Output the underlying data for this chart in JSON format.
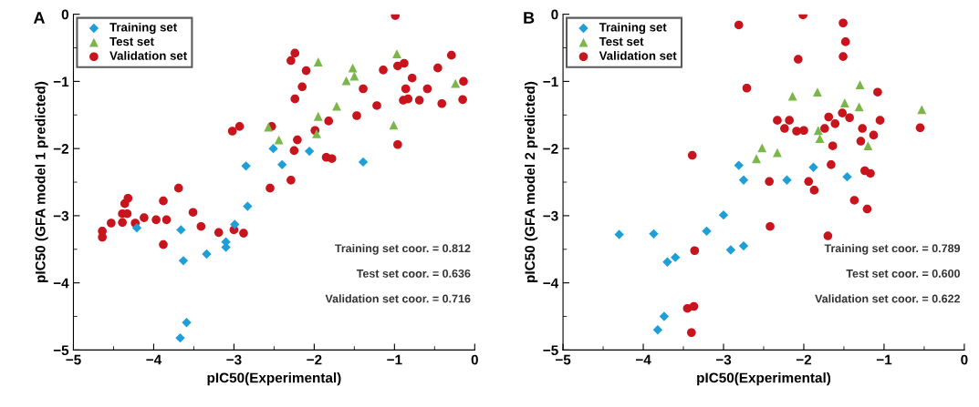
{
  "chart_data": [
    {
      "type": "scatter",
      "title": "A",
      "xlabel": "pIC50(Experimental)",
      "ylabel": "pIC50 (GFA model 1 predicted)",
      "xlim": [
        -5,
        0
      ],
      "ylim": [
        -5,
        0
      ],
      "xticks": [
        -5,
        -4,
        -3,
        -2,
        -1,
        0
      ],
      "yticks": [
        -5,
        -4,
        -3,
        -2,
        -1,
        0
      ],
      "grid": false,
      "legend": "top left",
      "annotations": [
        "Training set coor. = 0.812",
        "Test set coor. = 0.636",
        "Validation set coor. = 0.716"
      ],
      "series": [
        {
          "name": "Training set",
          "color": "#1e9fd8",
          "marker": "diamond",
          "x": [
            -4.21,
            -3.66,
            -3.63,
            -3.34,
            -3.1,
            -3.1,
            -2.99,
            -2.85,
            -2.83,
            -3.59,
            -3.67,
            -2.51,
            -2.06,
            -2.4,
            -1.39
          ],
          "values": [
            -3.18,
            -3.21,
            -3.67,
            -3.57,
            -3.39,
            -3.47,
            -3.13,
            -2.26,
            -2.86,
            -4.59,
            -4.82,
            -2.0,
            -2.04,
            -2.24,
            -2.2
          ]
        },
        {
          "name": "Test set",
          "color": "#7ab648",
          "marker": "triangle",
          "x": [
            -1.95,
            -1.52,
            -1.5,
            -1.6,
            -0.97,
            -0.24,
            -1.72,
            -1.95,
            -1.97,
            -2.57,
            -2.44,
            -1.01
          ],
          "values": [
            -0.71,
            -0.8,
            -0.92,
            -0.99,
            -0.59,
            -1.03,
            -1.37,
            -1.52,
            -1.78,
            -1.68,
            -1.87,
            -1.65
          ]
        },
        {
          "name": "Validation set",
          "color": "#c8141c",
          "marker": "circle",
          "x": [
            -4.64,
            -4.64,
            -4.53,
            -4.39,
            -4.39,
            -4.33,
            -4.36,
            -4.32,
            -4.23,
            -4.12,
            -3.97,
            -3.88,
            -3.84,
            -3.88,
            -3.69,
            -3.51,
            -3.41,
            -3.19,
            -3.0,
            -2.88,
            -3.02,
            -2.93,
            -0.99,
            -2.24,
            -2.29,
            -2.1,
            -2.15,
            -2.24,
            -1.14,
            -0.96,
            -0.88,
            -0.29,
            -0.46,
            -0.78,
            -0.14,
            -1.39,
            -0.86,
            -0.59,
            -0.89,
            -0.83,
            -0.69,
            -0.41,
            -0.15,
            -1.22,
            -1.47,
            -1.82,
            -2.53,
            -1.99,
            -2.21,
            -2.25,
            -1.85,
            -1.78,
            -0.96,
            -2.29,
            -2.55
          ],
          "values": [
            -3.23,
            -3.32,
            -3.11,
            -3.1,
            -2.97,
            -2.97,
            -2.82,
            -2.74,
            -3.11,
            -3.03,
            -3.06,
            -2.78,
            -3.06,
            -3.43,
            -2.59,
            -2.95,
            -3.16,
            -3.25,
            -3.21,
            -3.26,
            -1.74,
            -1.67,
            -0.02,
            -0.58,
            -0.69,
            -0.84,
            -1.08,
            -1.26,
            -0.83,
            -0.77,
            -0.73,
            -0.61,
            -0.8,
            -0.95,
            -1.0,
            -1.11,
            -1.11,
            -1.11,
            -1.28,
            -1.26,
            -1.28,
            -1.33,
            -1.27,
            -1.36,
            -1.51,
            -1.59,
            -1.67,
            -1.73,
            -1.87,
            -2.03,
            -2.13,
            -2.15,
            -1.94,
            -2.47,
            -2.59
          ]
        }
      ]
    },
    {
      "type": "scatter",
      "title": "B",
      "xlabel": "pIC50(Experimental)",
      "ylabel": "pIC50 (GFA model 2 predicted)",
      "xlim": [
        -5,
        0
      ],
      "ylim": [
        -5,
        0
      ],
      "xticks": [
        -5,
        -4,
        -3,
        -2,
        -1,
        0
      ],
      "yticks": [
        -5,
        -4,
        -3,
        -2,
        -1,
        0
      ],
      "grid": false,
      "legend": "top left",
      "annotations": [
        "Training set coor. = 0.789",
        "Test set coor. = 0.600",
        "Validation set coor. = 0.622"
      ],
      "series": [
        {
          "name": "Training set",
          "color": "#1e9fd8",
          "marker": "diamond",
          "x": [
            -4.3,
            -3.87,
            -3.7,
            -3.6,
            -3.21,
            -3.0,
            -3.74,
            -3.82,
            -2.81,
            -2.75,
            -2.21,
            -1.88,
            -1.46,
            -2.91,
            -2.75
          ],
          "values": [
            -3.28,
            -3.27,
            -3.69,
            -3.62,
            -3.23,
            -2.99,
            -4.5,
            -4.7,
            -2.25,
            -2.47,
            -2.47,
            -2.28,
            -2.42,
            -3.51,
            -3.45
          ]
        },
        {
          "name": "Test set",
          "color": "#7ab648",
          "marker": "triangle",
          "x": [
            -2.14,
            -1.83,
            -1.3,
            -1.49,
            -1.31,
            -0.53,
            -1.82,
            -1.8,
            -2.52,
            -2.59,
            -2.33,
            -1.2
          ],
          "values": [
            -1.22,
            -1.16,
            -1.05,
            -1.32,
            -1.38,
            -1.42,
            -1.73,
            -1.85,
            -1.99,
            -2.15,
            -2.06,
            -1.96
          ]
        },
        {
          "name": "Validation set",
          "color": "#c8141c",
          "marker": "circle",
          "x": [
            -3.39,
            -3.36,
            -3.45,
            -3.37,
            -3.4,
            -2.01,
            -2.81,
            -1.51,
            -1.48,
            -1.51,
            -2.07,
            -2.71,
            -1.08,
            -1.52,
            -1.69,
            -1.61,
            -1.43,
            -1.05,
            -0.55,
            -2.33,
            -2.18,
            -2.24,
            -2.09,
            -2.0,
            -1.74,
            -1.27,
            -1.13,
            -1.29,
            -1.64,
            -1.66,
            -2.43,
            -1.94,
            -1.87,
            -1.24,
            -1.17,
            -1.37,
            -1.21,
            -2.42,
            -1.7
          ],
          "values": [
            -2.1,
            -3.52,
            -4.38,
            -4.35,
            -4.74,
            -0.01,
            -0.16,
            -0.13,
            -0.41,
            -0.63,
            -0.67,
            -1.1,
            -1.16,
            -1.47,
            -1.53,
            -1.63,
            -1.54,
            -1.58,
            -1.69,
            -1.58,
            -1.58,
            -1.7,
            -1.74,
            -1.73,
            -1.7,
            -1.7,
            -1.8,
            -1.89,
            -1.96,
            -2.24,
            -2.49,
            -2.49,
            -2.62,
            -2.33,
            -2.37,
            -2.77,
            -2.9,
            -3.16,
            -3.3
          ]
        }
      ]
    }
  ]
}
